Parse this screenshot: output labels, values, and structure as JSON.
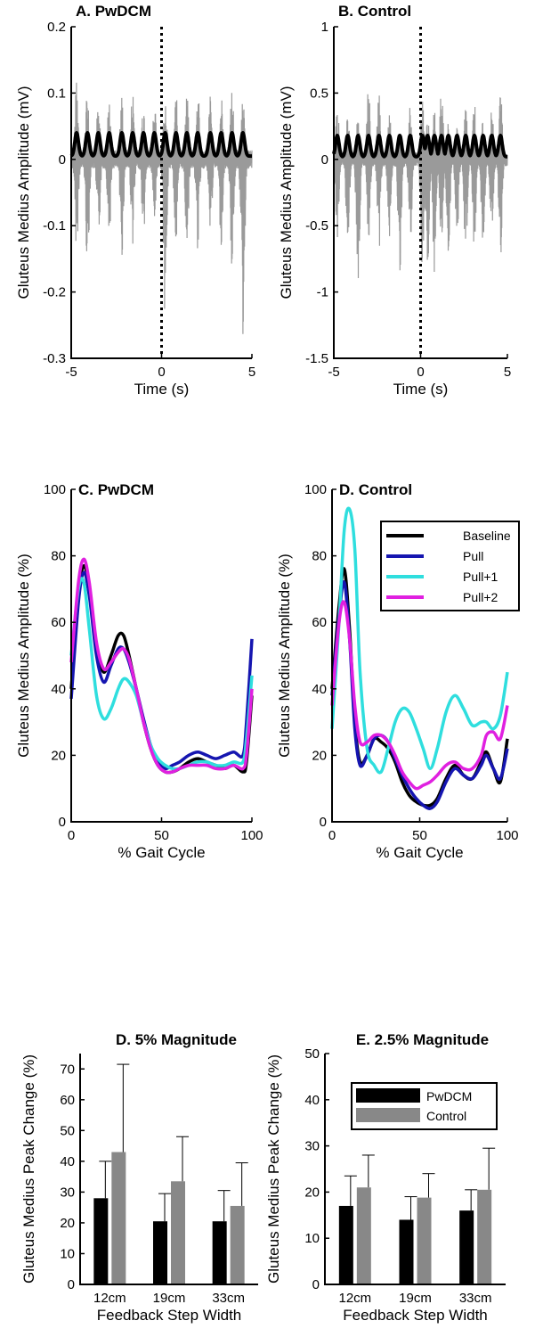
{
  "chart_data": [
    {
      "id": "A",
      "type": "line",
      "title": "A. PwDCM",
      "xlabel": "Time (s)",
      "ylabel": "Gluteus Medius Amplitude (mV)",
      "xlim": [
        -5,
        5
      ],
      "ylim": [
        -0.3,
        0.2
      ],
      "xticks": [
        "-5",
        "0",
        "5"
      ],
      "yticks": [
        "-0.3",
        "-0.2",
        "-0.1",
        "0",
        "0.1",
        "0.2"
      ],
      "xtick_values": [
        -5,
        0,
        5
      ],
      "ytick_values": [
        -0.3,
        -0.2,
        -0.1,
        0,
        0.1,
        0.2
      ],
      "event_line_x": 0,
      "series": [
        {
          "role": "raw",
          "color": "#9a9a9a",
          "peaks_t": [
            -4.7,
            -4.1,
            -3.5,
            -2.9,
            -2.2,
            -1.6,
            -1.0,
            -0.4,
            0.2,
            0.8,
            1.4,
            2.0,
            2.7,
            3.3,
            3.9,
            4.5
          ],
          "peaks_pos": [
            0.12,
            0.11,
            0.1,
            0.09,
            0.1,
            0.11,
            0.1,
            0.09,
            0.11,
            0.1,
            0.1,
            0.11,
            0.1,
            0.1,
            0.11,
            0.09
          ],
          "peaks_neg": [
            -0.14,
            -0.17,
            -0.13,
            -0.12,
            -0.15,
            -0.13,
            -0.12,
            -0.1,
            -0.24,
            -0.14,
            -0.13,
            -0.14,
            -0.12,
            -0.13,
            -0.17,
            -0.28
          ]
        },
        {
          "role": "envelope",
          "color": "#000000",
          "baseline": 0.005,
          "peak": 0.04
        }
      ]
    },
    {
      "id": "B",
      "type": "line",
      "title": "B. Control",
      "xlabel": "Time (s)",
      "ylabel": "Gluteus Medius Amplitude (mV)",
      "xlim": [
        -5,
        5
      ],
      "ylim": [
        -1.5,
        1
      ],
      "xticks": [
        "-5",
        "0",
        "5"
      ],
      "yticks": [
        "-1.5",
        "-1",
        "-0.5",
        "0",
        "0.5",
        "1"
      ],
      "xtick_values": [
        -5,
        0,
        5
      ],
      "ytick_values": [
        -1.5,
        -1,
        -0.5,
        0,
        0.5,
        1
      ],
      "event_line_x": 0,
      "series": [
        {
          "role": "raw",
          "color": "#9a9a9a",
          "peaks_t": [
            -4.8,
            -4.2,
            -3.6,
            -3.0,
            -2.4,
            -1.8,
            -1.2,
            -0.6,
            0.1,
            0.4,
            0.8,
            1.2,
            1.6,
            2.1,
            2.6,
            3.1,
            3.6,
            4.1,
            4.6
          ],
          "peaks_pos": [
            0.45,
            0.35,
            0.4,
            0.55,
            0.5,
            0.4,
            0.3,
            0.4,
            0.45,
            0.35,
            0.4,
            0.6,
            0.3,
            0.35,
            0.4,
            0.45,
            0.3,
            0.4,
            0.55
          ],
          "peaks_neg": [
            -0.6,
            -0.7,
            -1.2,
            -0.65,
            -0.7,
            -0.6,
            -0.9,
            -0.7,
            -0.8,
            -0.9,
            -1.0,
            -0.7,
            -0.8,
            -0.6,
            -0.75,
            -0.7,
            -0.8,
            -0.65,
            -0.8
          ]
        },
        {
          "role": "envelope",
          "color": "#000000",
          "baseline": 0.02,
          "peak": 0.18
        }
      ]
    },
    {
      "id": "C",
      "type": "line",
      "title": "C. PwDCM",
      "xlabel": "% Gait Cycle",
      "ylabel": "Gluteus Medius Amplitude (%)",
      "xlim": [
        0,
        100
      ],
      "ylim": [
        0,
        100
      ],
      "xticks": [
        "0",
        "50",
        "100"
      ],
      "yticks": [
        "0",
        "20",
        "40",
        "60",
        "80",
        "100"
      ],
      "xtick_values": [
        0,
        50,
        100
      ],
      "ytick_values": [
        0,
        20,
        40,
        60,
        80,
        100
      ],
      "x": [
        0,
        4,
        7,
        10,
        14,
        18,
        22,
        26,
        29,
        32,
        36,
        40,
        44,
        48,
        52,
        56,
        60,
        65,
        70,
        75,
        80,
        85,
        90,
        95,
        97,
        100
      ],
      "series": [
        {
          "name": "Baseline",
          "color": "#000000",
          "values": [
            40,
            68,
            77,
            70,
            52,
            45,
            50,
            56,
            56,
            50,
            40,
            30,
            22,
            17,
            15,
            15,
            16,
            18,
            19,
            18,
            17,
            16,
            17,
            15,
            18,
            38
          ]
        },
        {
          "name": "Pull",
          "color": "#1515b0",
          "values": [
            37,
            66,
            75,
            68,
            50,
            42,
            47,
            52,
            52,
            48,
            40,
            31,
            23,
            18,
            16,
            17,
            18,
            20,
            21,
            20,
            19,
            20,
            21,
            20,
            30,
            55
          ]
        },
        {
          "name": "Pull+1",
          "color": "#2fdede",
          "values": [
            50,
            70,
            72,
            58,
            38,
            31,
            34,
            40,
            43,
            42,
            38,
            30,
            23,
            19,
            17,
            16,
            16,
            17,
            18,
            18,
            17,
            17,
            18,
            18,
            25,
            44
          ]
        },
        {
          "name": "Pull+2",
          "color": "#e020e0",
          "values": [
            48,
            72,
            79,
            72,
            54,
            46,
            48,
            51,
            52,
            49,
            40,
            30,
            22,
            17,
            15,
            15,
            16,
            17,
            17,
            17,
            16,
            16,
            17,
            16,
            20,
            40
          ]
        }
      ]
    },
    {
      "id": "D1",
      "type": "line",
      "title": "D. Control",
      "xlabel": "% Gait Cycle",
      "ylabel": "Gluteus Medius Amplitude (%)",
      "xlim": [
        0,
        100
      ],
      "ylim": [
        0,
        100
      ],
      "xticks": [
        "0",
        "50",
        "100"
      ],
      "yticks": [
        "0",
        "20",
        "40",
        "60",
        "80",
        "100"
      ],
      "xtick_values": [
        0,
        50,
        100
      ],
      "ytick_values": [
        0,
        20,
        40,
        60,
        80,
        100
      ],
      "legend_position": "top-right",
      "x": [
        0,
        4,
        7,
        10,
        13,
        16,
        20,
        24,
        28,
        32,
        36,
        40,
        44,
        48,
        52,
        56,
        60,
        65,
        70,
        75,
        80,
        85,
        88,
        92,
        96,
        100
      ],
      "series": [
        {
          "name": "Baseline",
          "color": "#000000",
          "values": [
            40,
            65,
            76,
            58,
            30,
            18,
            20,
            25,
            24,
            22,
            18,
            12,
            8,
            6,
            5,
            5,
            7,
            13,
            17,
            14,
            13,
            18,
            21,
            16,
            12,
            25
          ]
        },
        {
          "name": "Pull",
          "color": "#1515b0",
          "values": [
            38,
            62,
            72,
            55,
            28,
            17,
            20,
            25,
            26,
            24,
            19,
            14,
            10,
            7,
            5,
            4,
            6,
            12,
            16,
            14,
            13,
            17,
            20,
            16,
            13,
            22
          ]
        },
        {
          "name": "Pull+1",
          "color": "#2fdede",
          "values": [
            28,
            60,
            88,
            94,
            82,
            45,
            22,
            17,
            15,
            22,
            30,
            34,
            33,
            28,
            22,
            16,
            22,
            33,
            38,
            34,
            29,
            30,
            30,
            28,
            32,
            45
          ]
        },
        {
          "name": "Pull+2",
          "color": "#e020e0",
          "values": [
            35,
            60,
            66,
            55,
            35,
            24,
            24,
            26,
            26,
            24,
            20,
            15,
            12,
            10,
            11,
            12,
            14,
            17,
            18,
            16,
            16,
            20,
            26,
            27,
            25,
            35
          ]
        }
      ]
    },
    {
      "id": "D2",
      "type": "bar",
      "title": "D. 5% Magnitude",
      "xlabel": "Feedback Step Width",
      "ylabel": "Gluteus Medius Peak Change (%)",
      "ylim": [
        0,
        75
      ],
      "yticks": [
        "0",
        "10",
        "20",
        "30",
        "40",
        "50",
        "60",
        "70"
      ],
      "ytick_values": [
        0,
        10,
        20,
        30,
        40,
        50,
        60,
        70
      ],
      "categories": [
        "12cm",
        "19cm",
        "33cm"
      ],
      "series": [
        {
          "name": "PwDCM",
          "color": "#000000",
          "values": [
            28,
            20.5,
            20.5
          ],
          "error": [
            12,
            9,
            10
          ]
        },
        {
          "name": "Control",
          "color": "#888888",
          "values": [
            43,
            33.5,
            25.5
          ],
          "error": [
            28.5,
            14.5,
            14
          ]
        }
      ]
    },
    {
      "id": "E",
      "type": "bar",
      "title": "E. 2.5% Magnitude",
      "xlabel": "Feedback Step Width",
      "ylabel": "Gluteus Medius Peak Change (%)",
      "ylim": [
        0,
        50
      ],
      "yticks": [
        "0",
        "10",
        "20",
        "30",
        "40",
        "50"
      ],
      "ytick_values": [
        0,
        10,
        20,
        30,
        40,
        50
      ],
      "legend_position": "top-right",
      "categories": [
        "12cm",
        "19cm",
        "33cm"
      ],
      "series": [
        {
          "name": "PwDCM",
          "color": "#000000",
          "values": [
            17,
            14,
            16
          ],
          "error": [
            6.5,
            5,
            4.5
          ]
        },
        {
          "name": "Control",
          "color": "#888888",
          "values": [
            21,
            18.8,
            20.5
          ],
          "error": [
            7,
            5.2,
            9
          ]
        }
      ]
    }
  ]
}
